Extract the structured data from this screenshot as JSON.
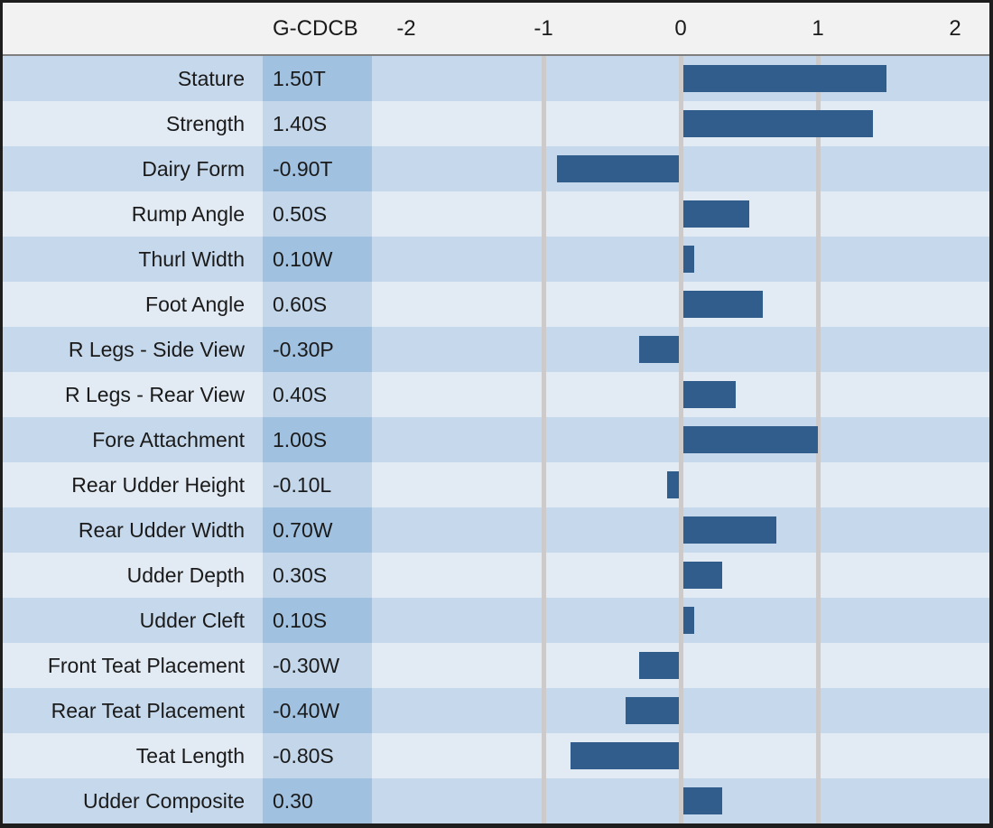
{
  "header": {
    "value_column": "G-CDCB",
    "axis_ticks": [
      "-2",
      "-1",
      "0",
      "1",
      "2"
    ]
  },
  "colors": {
    "bar": "#315d8c",
    "row_dark": "#c6d8eb",
    "row_light": "#e2eaf3",
    "value_dark": "#a0c1e0",
    "value_light": "#c3d6ea",
    "gridline": "#cccaca",
    "header_bg": "#f2f2f2",
    "border": "#1e1e1e",
    "header_divider": "#7f7f7f",
    "text": "#1a1a1a"
  },
  "chart_data": {
    "type": "bar",
    "orientation": "horizontal",
    "title": "",
    "value_column_header": "G-CDCB",
    "x_ticks": [
      -2,
      -1,
      0,
      1,
      2
    ],
    "xlim": [
      -2.25,
      2.25
    ],
    "gridlines_at": [
      -1,
      0,
      1
    ],
    "grid": true,
    "rows": [
      {
        "trait": "Stature",
        "label": "1.50T",
        "value": 1.5
      },
      {
        "trait": "Strength",
        "label": "1.40S",
        "value": 1.4
      },
      {
        "trait": "Dairy Form",
        "label": "-0.90T",
        "value": -0.9
      },
      {
        "trait": "Rump Angle",
        "label": "0.50S",
        "value": 0.5
      },
      {
        "trait": "Thurl Width",
        "label": "0.10W",
        "value": 0.1
      },
      {
        "trait": "Foot Angle",
        "label": "0.60S",
        "value": 0.6
      },
      {
        "trait": "R Legs - Side View",
        "label": "-0.30P",
        "value": -0.3
      },
      {
        "trait": "R Legs - Rear View",
        "label": "0.40S",
        "value": 0.4
      },
      {
        "trait": "Fore Attachment",
        "label": "1.00S",
        "value": 1.0
      },
      {
        "trait": "Rear Udder Height",
        "label": "-0.10L",
        "value": -0.1
      },
      {
        "trait": "Rear Udder Width",
        "label": "0.70W",
        "value": 0.7
      },
      {
        "trait": "Udder Depth",
        "label": "0.30S",
        "value": 0.3
      },
      {
        "trait": "Udder Cleft",
        "label": "0.10S",
        "value": 0.1
      },
      {
        "trait": "Front Teat Placement",
        "label": "-0.30W",
        "value": -0.3
      },
      {
        "trait": "Rear Teat Placement",
        "label": "-0.40W",
        "value": -0.4
      },
      {
        "trait": "Teat Length",
        "label": "-0.80S",
        "value": -0.8
      },
      {
        "trait": "Udder Composite",
        "label": "0.30",
        "value": 0.3
      }
    ]
  }
}
